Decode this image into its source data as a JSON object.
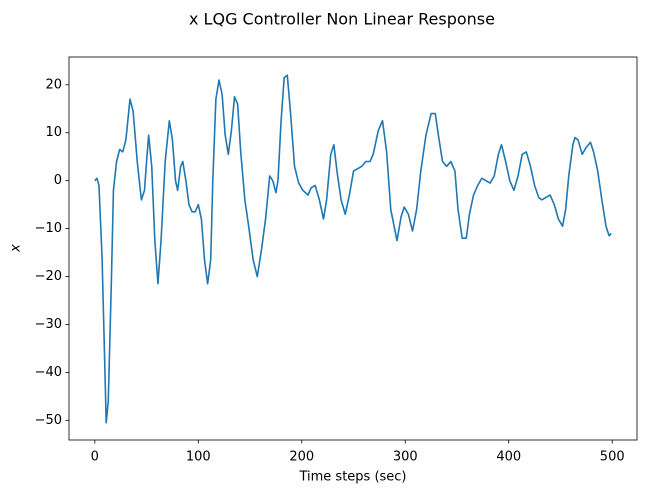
{
  "chart_data": {
    "type": "line",
    "title": "x LQG Controller Non Linear Response",
    "xlabel": "Time steps (sec)",
    "ylabel": "x",
    "color": "#1f77b4",
    "x": [
      0,
      2,
      4,
      7,
      9,
      11,
      13,
      16,
      18,
      21,
      24,
      27,
      30,
      34,
      37,
      41,
      45,
      48,
      50,
      52,
      55,
      58,
      61,
      64,
      68,
      72,
      75,
      78,
      80,
      83,
      85,
      88,
      91,
      94,
      97,
      100,
      103,
      106,
      109,
      112,
      114,
      117,
      120,
      123,
      126,
      129,
      132,
      135,
      138,
      141,
      145,
      149,
      153,
      157,
      161,
      165,
      169,
      172,
      175,
      177,
      180,
      183,
      186,
      189,
      193,
      197,
      201,
      206,
      209,
      213,
      217,
      221,
      224,
      228,
      231,
      234,
      238,
      242,
      246,
      250,
      254,
      258,
      262,
      266,
      269,
      274,
      278,
      282,
      286,
      292,
      296,
      299,
      303,
      307,
      311,
      315,
      320,
      325,
      329,
      332,
      336,
      340,
      344,
      348,
      351,
      355,
      359,
      362,
      366,
      370,
      374,
      378,
      382,
      386,
      390,
      393,
      397,
      401,
      405,
      409,
      413,
      417,
      421,
      425,
      429,
      432,
      436,
      440,
      444,
      448,
      452,
      455,
      458,
      462,
      464,
      467,
      471,
      475,
      479,
      482,
      486,
      490,
      494,
      497,
      499
    ],
    "values": [
      0,
      0.5,
      -1,
      -16,
      -33,
      -50.5,
      -46,
      -21,
      -2,
      4,
      6.5,
      6,
      8.5,
      17,
      14.5,
      4,
      -4,
      -2,
      4,
      9.5,
      3,
      -12.5,
      -21.5,
      -12.5,
      4,
      12.5,
      8.5,
      0,
      -2,
      3,
      4,
      0,
      -5,
      -6.5,
      -6.5,
      -5,
      -8,
      -16.5,
      -21.5,
      -16.5,
      0,
      17,
      21,
      18,
      9.5,
      5.5,
      10.5,
      17.5,
      16,
      6,
      -4,
      -10,
      -16.5,
      -20,
      -14.5,
      -8,
      1,
      0,
      -2.5,
      0,
      12.5,
      21.5,
      22,
      14.5,
      3,
      -0.5,
      -2,
      -3,
      -1.5,
      -1,
      -4,
      -8,
      -4,
      5.5,
      7.5,
      2,
      -4,
      -7,
      -3,
      2,
      2.5,
      3,
      4,
      4,
      5.5,
      10.5,
      12.5,
      6,
      -6,
      -12.5,
      -7.5,
      -5.5,
      -7,
      -10.5,
      -6,
      2,
      9.5,
      14,
      14,
      9.5,
      4,
      3,
      4,
      2,
      -6,
      -12,
      -12,
      -7,
      -3,
      -1,
      0.5,
      0,
      -0.5,
      1,
      5.5,
      7.5,
      4,
      0,
      -2,
      1,
      5.5,
      6,
      3,
      -1,
      -3.5,
      -4,
      -3.5,
      -3,
      -5,
      -8,
      -9.5,
      -6,
      1,
      7.5,
      9,
      8.5,
      5.5,
      7,
      8,
      6,
      2,
      -4,
      -9.5,
      -11.5,
      -11
    ],
    "xlim": [
      -24.95,
      523.95
    ],
    "ylim": [
      -54.1,
      25.8
    ],
    "xticks": [
      0,
      100,
      200,
      300,
      400,
      500
    ],
    "yticks": [
      {
        "value": -50,
        "label": "−50"
      },
      {
        "value": -40,
        "label": "−40"
      },
      {
        "value": -30,
        "label": "−30"
      },
      {
        "value": -20,
        "label": "−20"
      },
      {
        "value": -10,
        "label": "−10"
      },
      0,
      10,
      20
    ]
  }
}
